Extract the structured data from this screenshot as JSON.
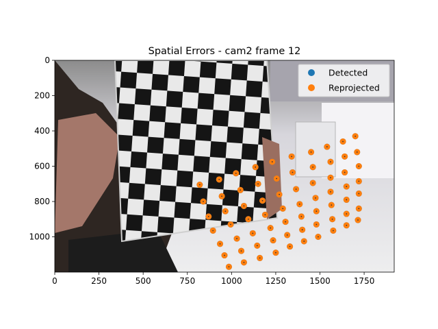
{
  "chart_data": {
    "type": "scatter",
    "title": "Spatial Errors - cam2 frame 12",
    "xlabel": "",
    "ylabel": "",
    "xlim": [
      0,
      1920
    ],
    "ylim": [
      1200,
      0
    ],
    "y_inverted": true,
    "grid": false,
    "legend_position": "top-right",
    "x_ticks": [
      0,
      250,
      500,
      750,
      1000,
      1250,
      1500,
      1750
    ],
    "y_ticks": [
      0,
      200,
      400,
      600,
      800,
      1000
    ],
    "background": "photo of a person holding a black-and-white checkerboard calibration target in a lab",
    "series": [
      {
        "name": "Detected",
        "color": "#1f77b4",
        "points": [
          [
            1700,
            430
          ],
          [
            1630,
            460
          ],
          [
            1540,
            490
          ],
          [
            1450,
            520
          ],
          [
            1340,
            545
          ],
          [
            1230,
            575
          ],
          [
            1135,
            605
          ],
          [
            1025,
            640
          ],
          [
            930,
            675
          ],
          [
            820,
            705
          ],
          [
            1710,
            520
          ],
          [
            1640,
            545
          ],
          [
            1560,
            575
          ],
          [
            1460,
            605
          ],
          [
            1345,
            635
          ],
          [
            1255,
            670
          ],
          [
            1150,
            700
          ],
          [
            1050,
            735
          ],
          [
            945,
            770
          ],
          [
            840,
            800
          ],
          [
            1720,
            600
          ],
          [
            1640,
            635
          ],
          [
            1560,
            665
          ],
          [
            1460,
            695
          ],
          [
            1365,
            730
          ],
          [
            1270,
            760
          ],
          [
            1175,
            795
          ],
          [
            1070,
            825
          ],
          [
            965,
            855
          ],
          [
            870,
            885
          ],
          [
            1720,
            685
          ],
          [
            1650,
            715
          ],
          [
            1560,
            745
          ],
          [
            1475,
            780
          ],
          [
            1385,
            815
          ],
          [
            1290,
            840
          ],
          [
            1190,
            875
          ],
          [
            1095,
            900
          ],
          [
            995,
            930
          ],
          [
            895,
            965
          ],
          [
            1720,
            755
          ],
          [
            1650,
            790
          ],
          [
            1565,
            820
          ],
          [
            1480,
            855
          ],
          [
            1395,
            885
          ],
          [
            1305,
            915
          ],
          [
            1220,
            950
          ],
          [
            1120,
            980
          ],
          [
            1030,
            1010
          ],
          [
            935,
            1040
          ],
          [
            1720,
            840
          ],
          [
            1650,
            870
          ],
          [
            1570,
            900
          ],
          [
            1480,
            930
          ],
          [
            1400,
            960
          ],
          [
            1315,
            990
          ],
          [
            1235,
            1020
          ],
          [
            1145,
            1050
          ],
          [
            1055,
            1080
          ],
          [
            960,
            1105
          ],
          [
            1715,
            905
          ],
          [
            1650,
            935
          ],
          [
            1575,
            965
          ],
          [
            1490,
            1000
          ],
          [
            1410,
            1025
          ],
          [
            1330,
            1055
          ],
          [
            1250,
            1090
          ],
          [
            1160,
            1120
          ],
          [
            1070,
            1145
          ],
          [
            985,
            1170
          ]
        ]
      },
      {
        "name": "Reprojected",
        "color": "#ff7f0e",
        "points": [
          [
            1700,
            430
          ],
          [
            1630,
            460
          ],
          [
            1540,
            490
          ],
          [
            1450,
            520
          ],
          [
            1340,
            545
          ],
          [
            1230,
            575
          ],
          [
            1135,
            605
          ],
          [
            1025,
            640
          ],
          [
            930,
            675
          ],
          [
            820,
            705
          ],
          [
            1710,
            520
          ],
          [
            1640,
            545
          ],
          [
            1560,
            575
          ],
          [
            1460,
            605
          ],
          [
            1345,
            635
          ],
          [
            1255,
            670
          ],
          [
            1150,
            700
          ],
          [
            1050,
            735
          ],
          [
            945,
            770
          ],
          [
            840,
            800
          ],
          [
            1720,
            600
          ],
          [
            1640,
            635
          ],
          [
            1560,
            665
          ],
          [
            1460,
            695
          ],
          [
            1365,
            730
          ],
          [
            1270,
            760
          ],
          [
            1175,
            795
          ],
          [
            1070,
            825
          ],
          [
            965,
            855
          ],
          [
            870,
            885
          ],
          [
            1720,
            685
          ],
          [
            1650,
            715
          ],
          [
            1560,
            745
          ],
          [
            1475,
            780
          ],
          [
            1385,
            815
          ],
          [
            1290,
            840
          ],
          [
            1190,
            875
          ],
          [
            1095,
            900
          ],
          [
            995,
            930
          ],
          [
            895,
            965
          ],
          [
            1720,
            755
          ],
          [
            1650,
            790
          ],
          [
            1565,
            820
          ],
          [
            1480,
            855
          ],
          [
            1395,
            885
          ],
          [
            1305,
            915
          ],
          [
            1220,
            950
          ],
          [
            1120,
            980
          ],
          [
            1030,
            1010
          ],
          [
            935,
            1040
          ],
          [
            1720,
            840
          ],
          [
            1650,
            870
          ],
          [
            1570,
            900
          ],
          [
            1480,
            930
          ],
          [
            1400,
            960
          ],
          [
            1315,
            990
          ],
          [
            1235,
            1020
          ],
          [
            1145,
            1050
          ],
          [
            1055,
            1080
          ],
          [
            960,
            1105
          ],
          [
            1715,
            905
          ],
          [
            1650,
            935
          ],
          [
            1575,
            965
          ],
          [
            1490,
            1000
          ],
          [
            1410,
            1025
          ],
          [
            1330,
            1055
          ],
          [
            1250,
            1090
          ],
          [
            1160,
            1120
          ],
          [
            1070,
            1145
          ],
          [
            985,
            1170
          ]
        ]
      }
    ]
  }
}
